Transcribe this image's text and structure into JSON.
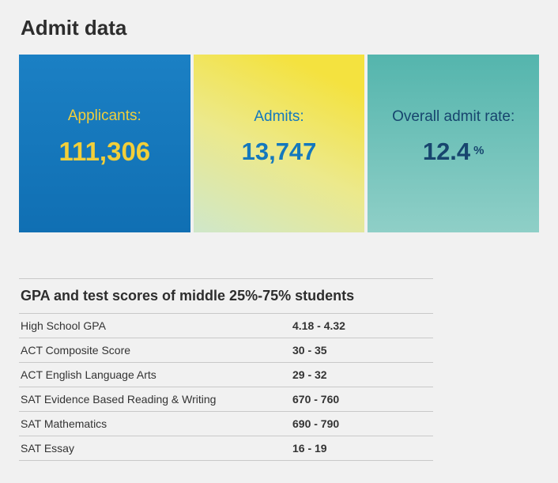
{
  "page": {
    "title": "Admit data"
  },
  "colors": {
    "card_blue": "#1476bd",
    "card_yellow": "#f4e23f",
    "card_teal": "#54b5ad",
    "accent_yellow_text": "#f2cf3a",
    "accent_blue_text": "#1478bd",
    "accent_navy_text": "#17456e",
    "page_background": "#f1f1f1"
  },
  "cards": [
    {
      "label": "Applicants:",
      "value": "111,306"
    },
    {
      "label": "Admits:",
      "value": "13,747"
    },
    {
      "label": "Overall admit rate:",
      "value": "12.4",
      "suffix": "%"
    }
  ],
  "table": {
    "title": "GPA and test scores of middle 25%-75% students",
    "rows": [
      {
        "label": "High School GPA",
        "value": "4.18 - 4.32"
      },
      {
        "label": "ACT Composite Score",
        "value": "30 - 35"
      },
      {
        "label": "ACT English Language Arts",
        "value": "29 - 32"
      },
      {
        "label": "SAT Evidence Based Reading & Writing",
        "value": "670 - 760"
      },
      {
        "label": "SAT Mathematics",
        "value": "690 - 790"
      },
      {
        "label": "SAT Essay",
        "value": "16 - 19"
      }
    ]
  }
}
